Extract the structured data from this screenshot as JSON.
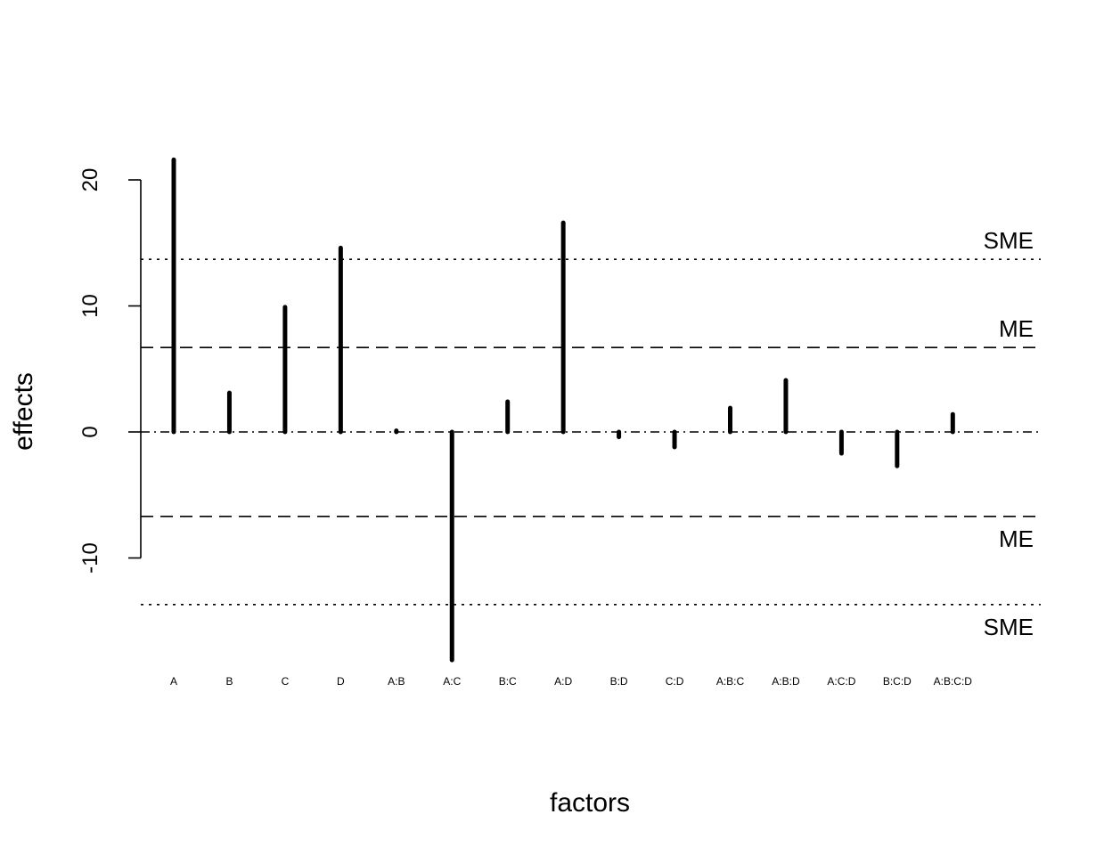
{
  "chart_data": {
    "type": "bar",
    "xlabel": "factors",
    "ylabel": "effects",
    "categories": [
      "A",
      "B",
      "C",
      "D",
      "A:B",
      "A:C",
      "B:C",
      "A:D",
      "B:D",
      "C:D",
      "A:B:C",
      "A:B:D",
      "A:C:D",
      "B:C:D",
      "A:B:C:D"
    ],
    "values": [
      21.6,
      3.1,
      9.9,
      14.6,
      0.1,
      -18.1,
      2.4,
      16.6,
      -0.4,
      -1.2,
      1.9,
      4.1,
      -1.7,
      -2.7,
      1.4
    ],
    "ylim": [
      -18.6,
      22.1
    ],
    "yticks": [
      "-10",
      "0",
      "10",
      "20"
    ],
    "ref_lines": [
      {
        "label": "SME",
        "value": 13.7,
        "style": "dotted"
      },
      {
        "label": "ME",
        "value": 6.7,
        "style": "dashed"
      },
      {
        "label": "ME",
        "value": -6.7,
        "style": "dashed"
      },
      {
        "label": "SME",
        "value": -13.7,
        "style": "dotted"
      }
    ],
    "grid": false,
    "legend": "none"
  }
}
